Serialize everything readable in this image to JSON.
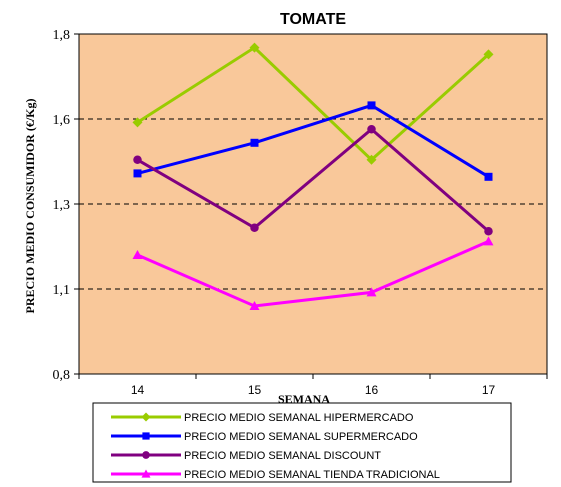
{
  "chart_data": {
    "type": "line",
    "title": "TOMATE",
    "xlabel": "SEMANA",
    "ylabel": "PRECIO MEDIO CONSUMIDOR (€/Kg)",
    "categories": [
      "14",
      "15",
      "16",
      "17"
    ],
    "ylim": [
      0.8,
      1.8
    ],
    "yticks": [
      0.8,
      1.05,
      1.3,
      1.55,
      1.8
    ],
    "ytick_labels": [
      "0,8",
      "1,1",
      "1,3",
      "1,6",
      "1,8"
    ],
    "grid": "horizontal dashed",
    "legend_position": "bottom",
    "background_color": "#F9C89A",
    "series": [
      {
        "name": "PRECIO MEDIO SEMANAL HIPERMERCADO",
        "color": "#99CC00",
        "marker": "diamond",
        "values": [
          1.54,
          1.76,
          1.43,
          1.74
        ]
      },
      {
        "name": "PRECIO MEDIO SEMANAL SUPERMERCADO",
        "color": "#0000FF",
        "marker": "square",
        "values": [
          1.39,
          1.48,
          1.59,
          1.38
        ]
      },
      {
        "name": "PRECIO MEDIO SEMANAL DISCOUNT",
        "color": "#800080",
        "marker": "circle",
        "values": [
          1.43,
          1.23,
          1.52,
          1.22
        ]
      },
      {
        "name": "PRECIO MEDIO SEMANAL TIENDA TRADICIONAL",
        "color": "#FF00FF",
        "marker": "triangle",
        "values": [
          1.15,
          1.0,
          1.04,
          1.19
        ]
      }
    ]
  }
}
